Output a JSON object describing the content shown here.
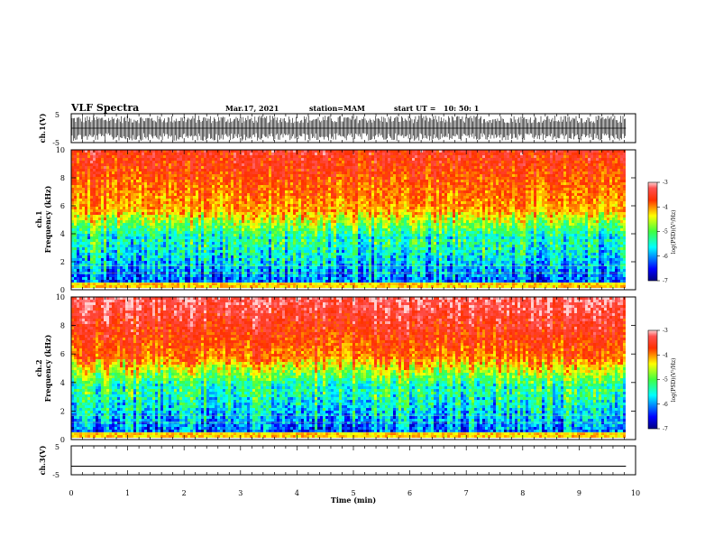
{
  "header": {
    "title": "VLF Spectra",
    "date": "Mar.17, 2021",
    "station": "station=MAM",
    "start_label": "start  UT  =",
    "start_value": "10: 50: 1"
  },
  "chart_data": [
    {
      "type": "line",
      "panel": "ch1-waveform",
      "ylabel": "ch.1(V)",
      "ylim": [
        -5,
        5
      ],
      "ytick_labels": [
        "5",
        "-5"
      ],
      "x_range_min": [
        0,
        9.83
      ],
      "description_values": {
        "baseline_v": 0,
        "spike_max_v": 5,
        "spike_min_v": -5
      }
    },
    {
      "type": "heatmap",
      "panel": "ch1-spectrogram",
      "ylabel_line1": "ch.1",
      "ylabel_line2": "Frequency (kHz)",
      "ylim": [
        0,
        10
      ],
      "ytick_labels": [
        "0",
        "2",
        "4",
        "6",
        "8",
        "10"
      ],
      "x_data_end_min": 9.83,
      "colorbar": {
        "label": "log(PSD)(V²/Hz)",
        "range": [
          -7,
          -3
        ],
        "tick_labels": [
          "-3",
          "-4",
          "-5",
          "-6",
          "-7"
        ]
      }
    },
    {
      "type": "heatmap",
      "panel": "ch2-spectrogram",
      "ylabel_line1": "ch.2",
      "ylabel_line2": "Frequency (kHz)",
      "ylim": [
        0,
        10
      ],
      "ytick_labels": [
        "0",
        "2",
        "4",
        "6",
        "8",
        "10"
      ],
      "x_data_end_min": 9.83,
      "colorbar": {
        "label": "log(PSD)(V²/Hz)",
        "range": [
          -7,
          -3
        ],
        "tick_labels": [
          "-3",
          "-4",
          "-5",
          "-6",
          "-7"
        ]
      }
    },
    {
      "type": "line",
      "panel": "ch3-waveform",
      "ylabel": "ch.3(V)",
      "ylim": [
        -5,
        5
      ],
      "ytick_labels": [
        "5",
        "-5"
      ],
      "x": [
        0,
        9.83
      ],
      "y": [
        -2.3,
        -2.3
      ]
    }
  ],
  "xaxis": {
    "label": "Time  (min)",
    "range": [
      0,
      10
    ],
    "tick_labels": [
      "0",
      "1",
      "2",
      "3",
      "4",
      "5",
      "6",
      "7",
      "8",
      "9",
      "10"
    ]
  },
  "colors": {
    "jet_low": "#00007f",
    "jet_high": "#ff2020",
    "saturation": "#ffc8c8"
  }
}
